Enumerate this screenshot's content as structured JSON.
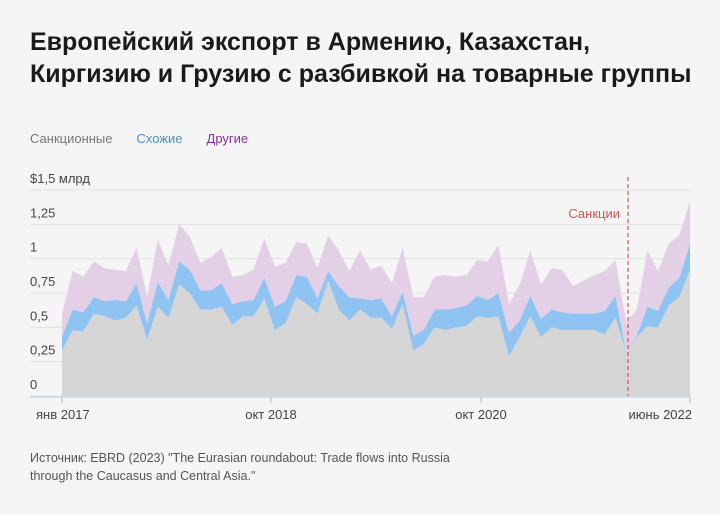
{
  "title": "Европейский экспорт в Армению, Казахстан, Киргизию и Грузию с разбивкой на товарные группы",
  "source": "Источник: EBRD (2023) \"The Eurasian roundabout: Trade flows into Russia through the Caucasus and Central Asia.\"",
  "chart_data": {
    "type": "area",
    "stacked": true,
    "title": "",
    "ylabel": "",
    "ylim": [
      0,
      1.5
    ],
    "y_ticks": [
      "0",
      "0,25",
      "0,5",
      "0,75",
      "1",
      "1,25",
      "$1,5 млрд"
    ],
    "y_tick_values": [
      0,
      0.25,
      0.5,
      0.75,
      1,
      1.25,
      1.5
    ],
    "x_ticks": [
      "янв 2017",
      "окт 2018",
      "окт 2020",
      "июнь 2022"
    ],
    "grid": true,
    "legend_position": "top-left",
    "annotation": {
      "label": "Санкции",
      "color": "#d9534f"
    },
    "series": [
      {
        "name": "Санкционные",
        "color": "#d6d6d6",
        "label_color": "#777777",
        "values": [
          0.33,
          0.48,
          0.47,
          0.6,
          0.58,
          0.55,
          0.57,
          0.66,
          0.41,
          0.65,
          0.57,
          0.81,
          0.75,
          0.63,
          0.63,
          0.65,
          0.52,
          0.58,
          0.58,
          0.71,
          0.48,
          0.53,
          0.72,
          0.67,
          0.6,
          0.84,
          0.63,
          0.55,
          0.63,
          0.57,
          0.57,
          0.49,
          0.67,
          0.33,
          0.38,
          0.5,
          0.48,
          0.5,
          0.51,
          0.58,
          0.57,
          0.58,
          0.29,
          0.43,
          0.58,
          0.43,
          0.5,
          0.48,
          0.48,
          0.48,
          0.48,
          0.45,
          0.57,
          0.32,
          0.43,
          0.51,
          0.5,
          0.66,
          0.72,
          0.92
        ]
      },
      {
        "name": "Схожие",
        "color": "#8fc3f2",
        "label_color": "#4a8fd0",
        "values": [
          0.1,
          0.15,
          0.14,
          0.12,
          0.11,
          0.15,
          0.12,
          0.16,
          0.12,
          0.18,
          0.13,
          0.17,
          0.17,
          0.14,
          0.14,
          0.17,
          0.15,
          0.11,
          0.12,
          0.15,
          0.17,
          0.16,
          0.16,
          0.2,
          0.11,
          0.07,
          0.17,
          0.17,
          0.08,
          0.13,
          0.14,
          0.09,
          0.09,
          0.11,
          0.1,
          0.13,
          0.15,
          0.14,
          0.15,
          0.15,
          0.13,
          0.17,
          0.17,
          0.12,
          0.15,
          0.13,
          0.13,
          0.13,
          0.12,
          0.12,
          0.12,
          0.17,
          0.16,
          0.0,
          0.01,
          0.14,
          0.12,
          0.13,
          0.14,
          0.19
        ]
      },
      {
        "name": "Другие",
        "color": "#e3d0e6",
        "label_color": "#8a2e9a",
        "values": [
          0.17,
          0.28,
          0.26,
          0.26,
          0.24,
          0.22,
          0.22,
          0.26,
          0.19,
          0.31,
          0.25,
          0.27,
          0.24,
          0.2,
          0.24,
          0.26,
          0.2,
          0.19,
          0.22,
          0.29,
          0.29,
          0.28,
          0.24,
          0.24,
          0.22,
          0.26,
          0.26,
          0.19,
          0.35,
          0.22,
          0.24,
          0.24,
          0.32,
          0.28,
          0.24,
          0.24,
          0.25,
          0.23,
          0.22,
          0.26,
          0.28,
          0.35,
          0.21,
          0.26,
          0.33,
          0.25,
          0.3,
          0.31,
          0.2,
          0.24,
          0.28,
          0.29,
          0.26,
          0.22,
          0.19,
          0.41,
          0.29,
          0.32,
          0.31,
          0.31
        ]
      }
    ]
  }
}
